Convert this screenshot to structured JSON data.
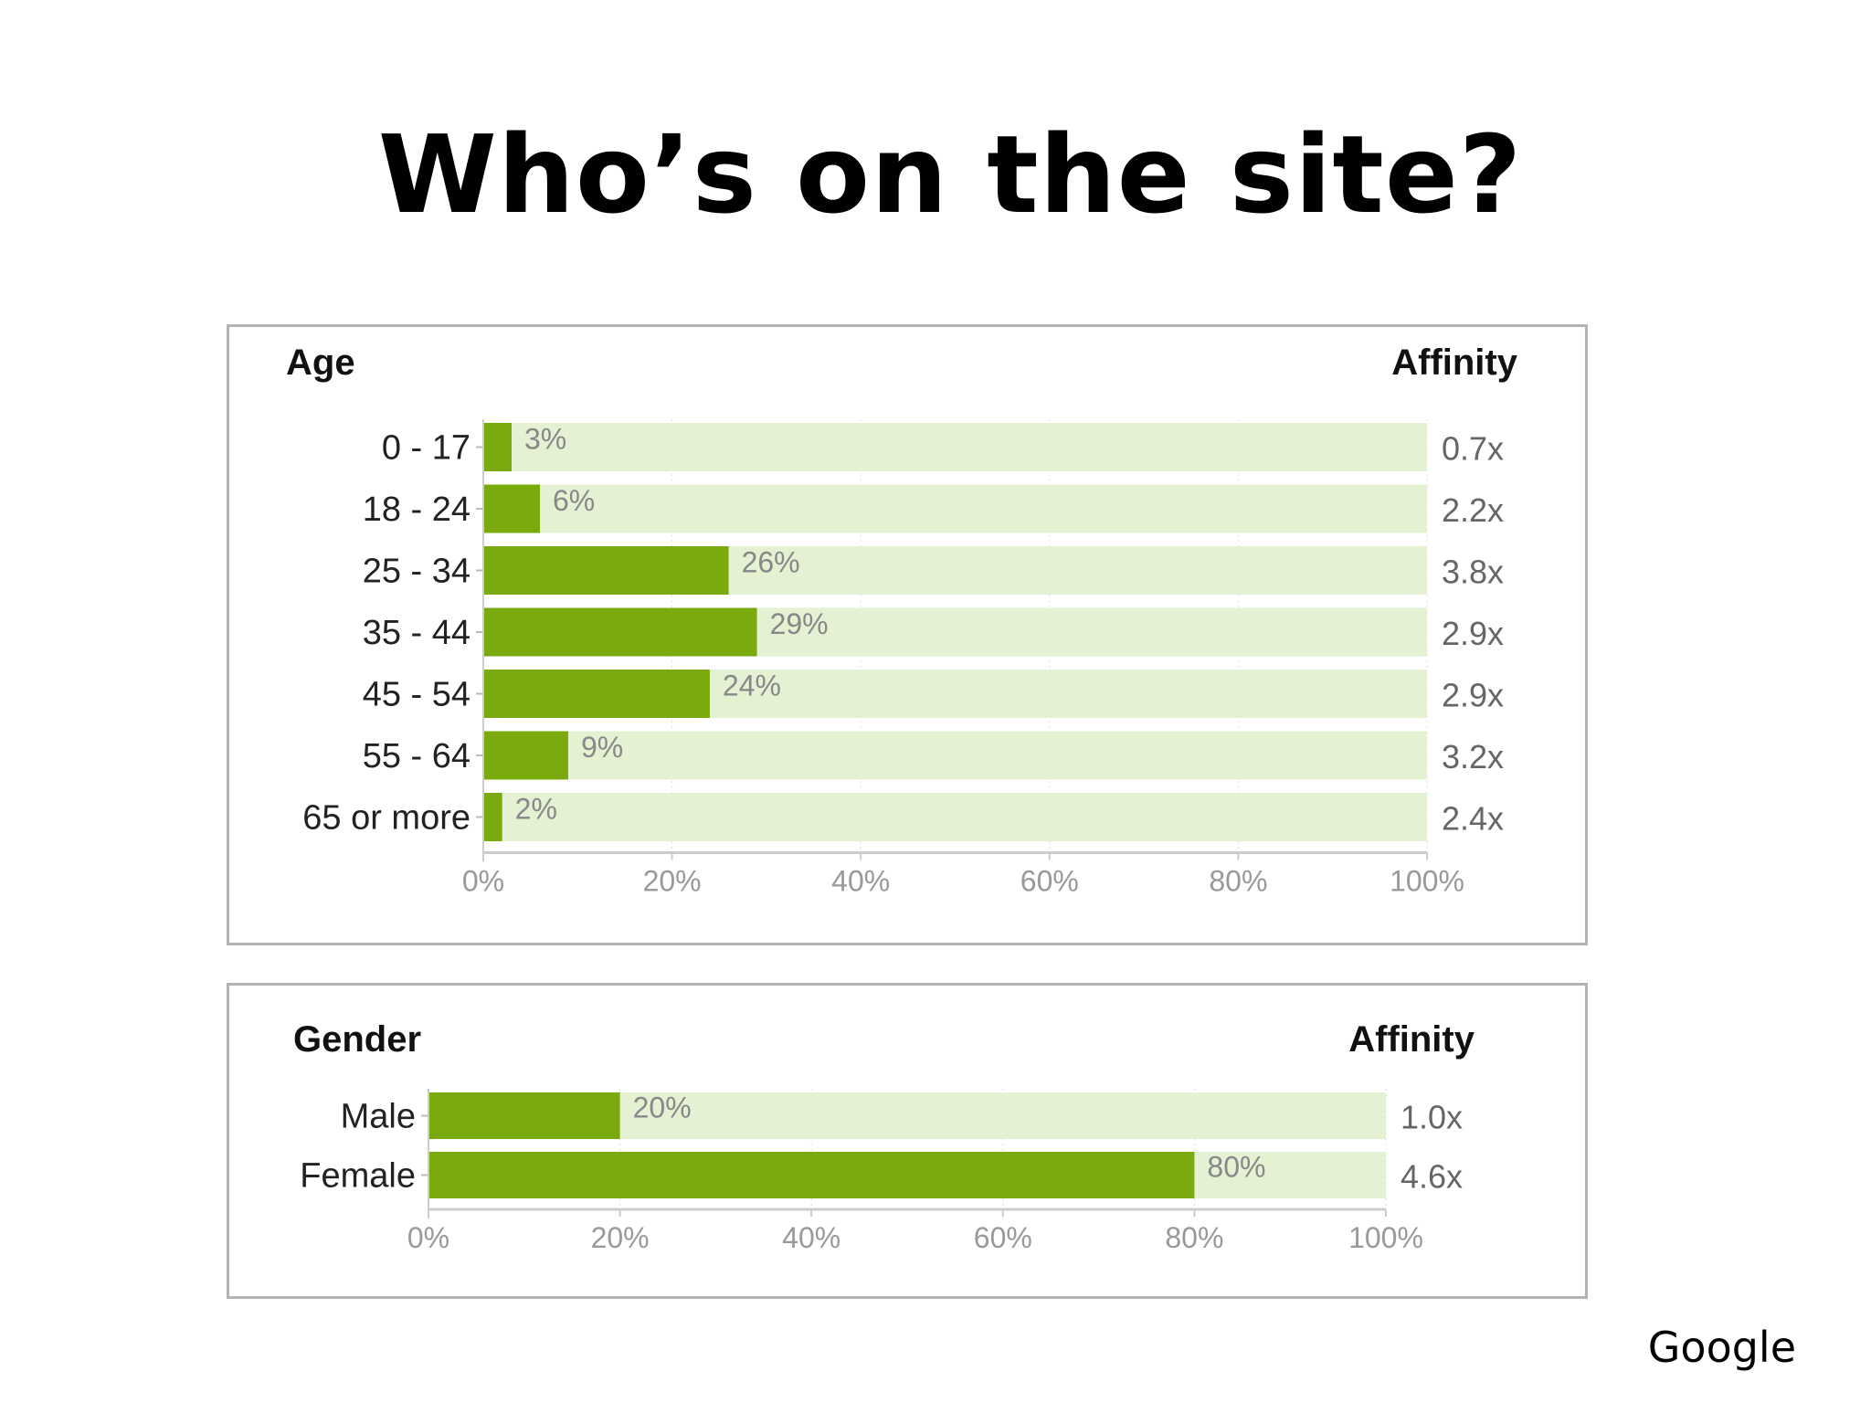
{
  "slide": {
    "title": "Who’s on the site?",
    "source": "Google"
  },
  "colors": {
    "bar_fill": "#7aaa0e",
    "bar_track": "#e5f1d3",
    "panel_border": "#b3b3b3"
  },
  "chart_data": [
    {
      "type": "bar",
      "orientation": "horizontal",
      "title": "Age",
      "secondary_column_label": "Affinity",
      "categories": [
        "0 - 17",
        "18 - 24",
        "25 - 34",
        "35 - 44",
        "45 - 54",
        "55 - 64",
        "65 or more"
      ],
      "values": [
        3,
        6,
        26,
        29,
        24,
        9,
        2
      ],
      "value_labels": [
        "3%",
        "6%",
        "26%",
        "29%",
        "24%",
        "9%",
        "2%"
      ],
      "affinity": [
        "0.7x",
        "2.2x",
        "3.8x",
        "2.9x",
        "2.9x",
        "3.2x",
        "2.4x"
      ],
      "xlim": [
        0,
        100
      ],
      "x_ticks": [
        "0%",
        "20%",
        "40%",
        "60%",
        "80%",
        "100%"
      ],
      "grid": true
    },
    {
      "type": "bar",
      "orientation": "horizontal",
      "title": "Gender",
      "secondary_column_label": "Affinity",
      "categories": [
        "Male",
        "Female"
      ],
      "values": [
        20,
        80
      ],
      "value_labels": [
        "20%",
        "80%"
      ],
      "affinity": [
        "1.0x",
        "4.6x"
      ],
      "xlim": [
        0,
        100
      ],
      "x_ticks": [
        "0%",
        "20%",
        "40%",
        "60%",
        "80%",
        "100%"
      ],
      "grid": true
    }
  ]
}
